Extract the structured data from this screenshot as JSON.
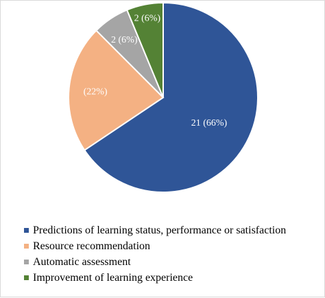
{
  "chart_data": {
    "type": "pie",
    "title": "",
    "slices": [
      {
        "name": "Predictions of learning status, performance or satisfaction",
        "value": 21,
        "label": "21 (66%)",
        "color": "#2F5597"
      },
      {
        "name": "Resource recommendation",
        "value": 7,
        "label": "(22%)",
        "color": "#F4B183"
      },
      {
        "name": "Automatic assessment",
        "value": 2,
        "label": "2 (6%)",
        "color": "#A5A5A5"
      },
      {
        "name": "Improvement of learning experience",
        "value": 2,
        "label": "2 (6%)",
        "color": "#548235"
      }
    ],
    "legend_position": "bottom"
  }
}
